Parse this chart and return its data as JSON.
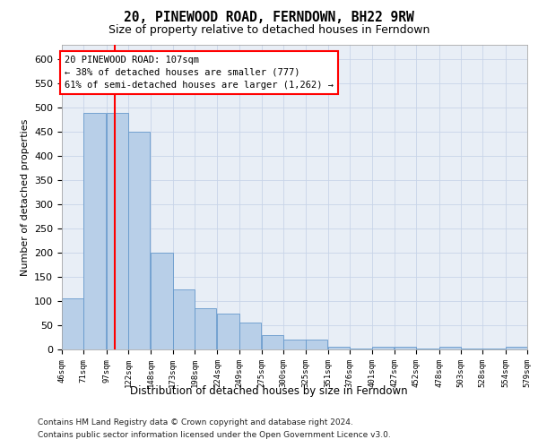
{
  "title": "20, PINEWOOD ROAD, FERNDOWN, BH22 9RW",
  "subtitle": "Size of property relative to detached houses in Ferndown",
  "xlabel": "Distribution of detached houses by size in Ferndown",
  "ylabel": "Number of detached properties",
  "bar_color": "#b8cfe8",
  "bar_edge_color": "#6699cc",
  "red_line_x": 107,
  "annotation_line1": "20 PINEWOOD ROAD: 107sqm",
  "annotation_line2": "← 38% of detached houses are smaller (777)",
  "annotation_line3": "61% of semi-detached houses are larger (1,262) →",
  "footer_line1": "Contains HM Land Registry data © Crown copyright and database right 2024.",
  "footer_line2": "Contains public sector information licensed under the Open Government Licence v3.0.",
  "bins": [
    46,
    71,
    97,
    122,
    148,
    173,
    198,
    224,
    249,
    275,
    300,
    325,
    351,
    376,
    401,
    427,
    452,
    478,
    503,
    528,
    554
  ],
  "counts": [
    105,
    490,
    490,
    450,
    200,
    125,
    85,
    75,
    55,
    30,
    20,
    20,
    5,
    2,
    5,
    5,
    2,
    5,
    2,
    2,
    5
  ],
  "ylim": [
    0,
    630
  ],
  "yticks": [
    0,
    50,
    100,
    150,
    200,
    250,
    300,
    350,
    400,
    450,
    500,
    550,
    600
  ],
  "grid_color": "#c8d4e8",
  "bg_color": "#e8eef6"
}
